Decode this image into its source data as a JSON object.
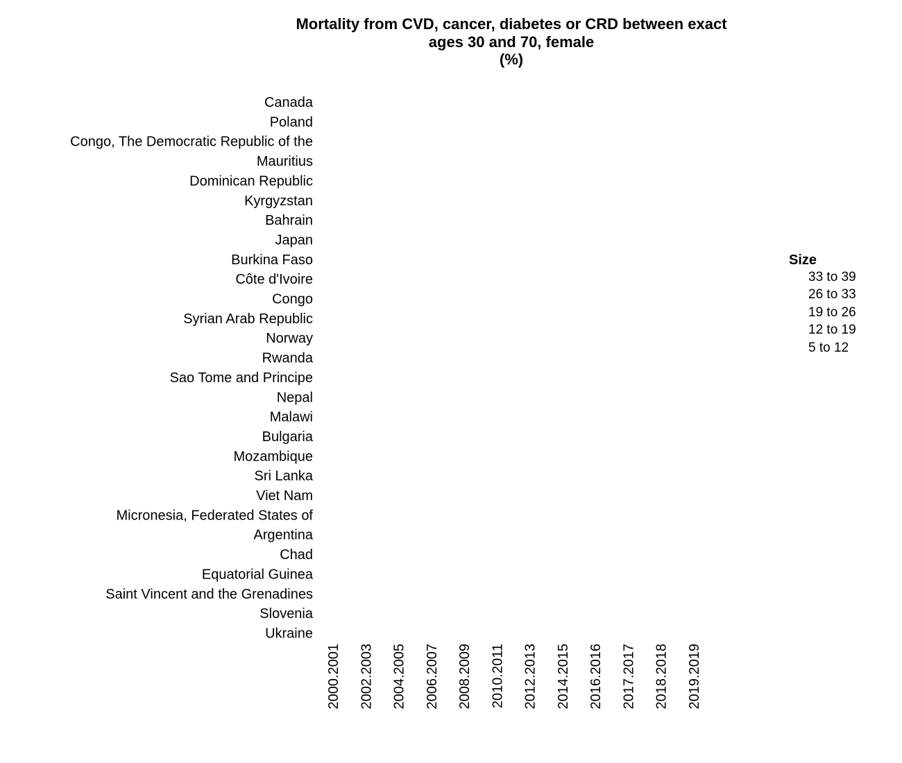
{
  "chart_data": {
    "type": "scatter",
    "title_lines": [
      "Mortality from CVD, cancer, diabetes or CRD between exact",
      "ages 30 and 70, female",
      "(%)"
    ],
    "xlabel": "",
    "ylabel": "",
    "categories_x": [
      "2000.2001",
      "2002.2003",
      "2004.2005",
      "2006.2007",
      "2008.2009",
      "2010.2011",
      "2012.2013",
      "2014.2015",
      "2016.2016",
      "2017.2017",
      "2018.2018",
      "2019.2019"
    ],
    "categories_y": [
      "Canada",
      "Poland",
      "Congo, The Democratic Republic of the",
      "Mauritius",
      "Dominican Republic",
      "Kyrgyzstan",
      "Bahrain",
      "Japan",
      "Burkina Faso",
      "Côte d'Ivoire",
      "Congo",
      "Syrian Arab Republic",
      "Norway",
      "Rwanda",
      "Sao Tome and Principe",
      "Nepal",
      "Malawi",
      "Bulgaria",
      "Mozambique",
      "Sri Lanka",
      "Viet Nam",
      "Micronesia, Federated States of",
      "Argentina",
      "Chad",
      "Equatorial Guinea",
      "Saint Vincent and the Grenadines",
      "Slovenia",
      "Ukraine"
    ],
    "points": [],
    "legend": {
      "title": "Size",
      "items": [
        "33 to 39",
        "26 to 33",
        "19 to 26",
        "12 to 19",
        "5 to 12"
      ],
      "position": "right"
    },
    "grid": false
  }
}
